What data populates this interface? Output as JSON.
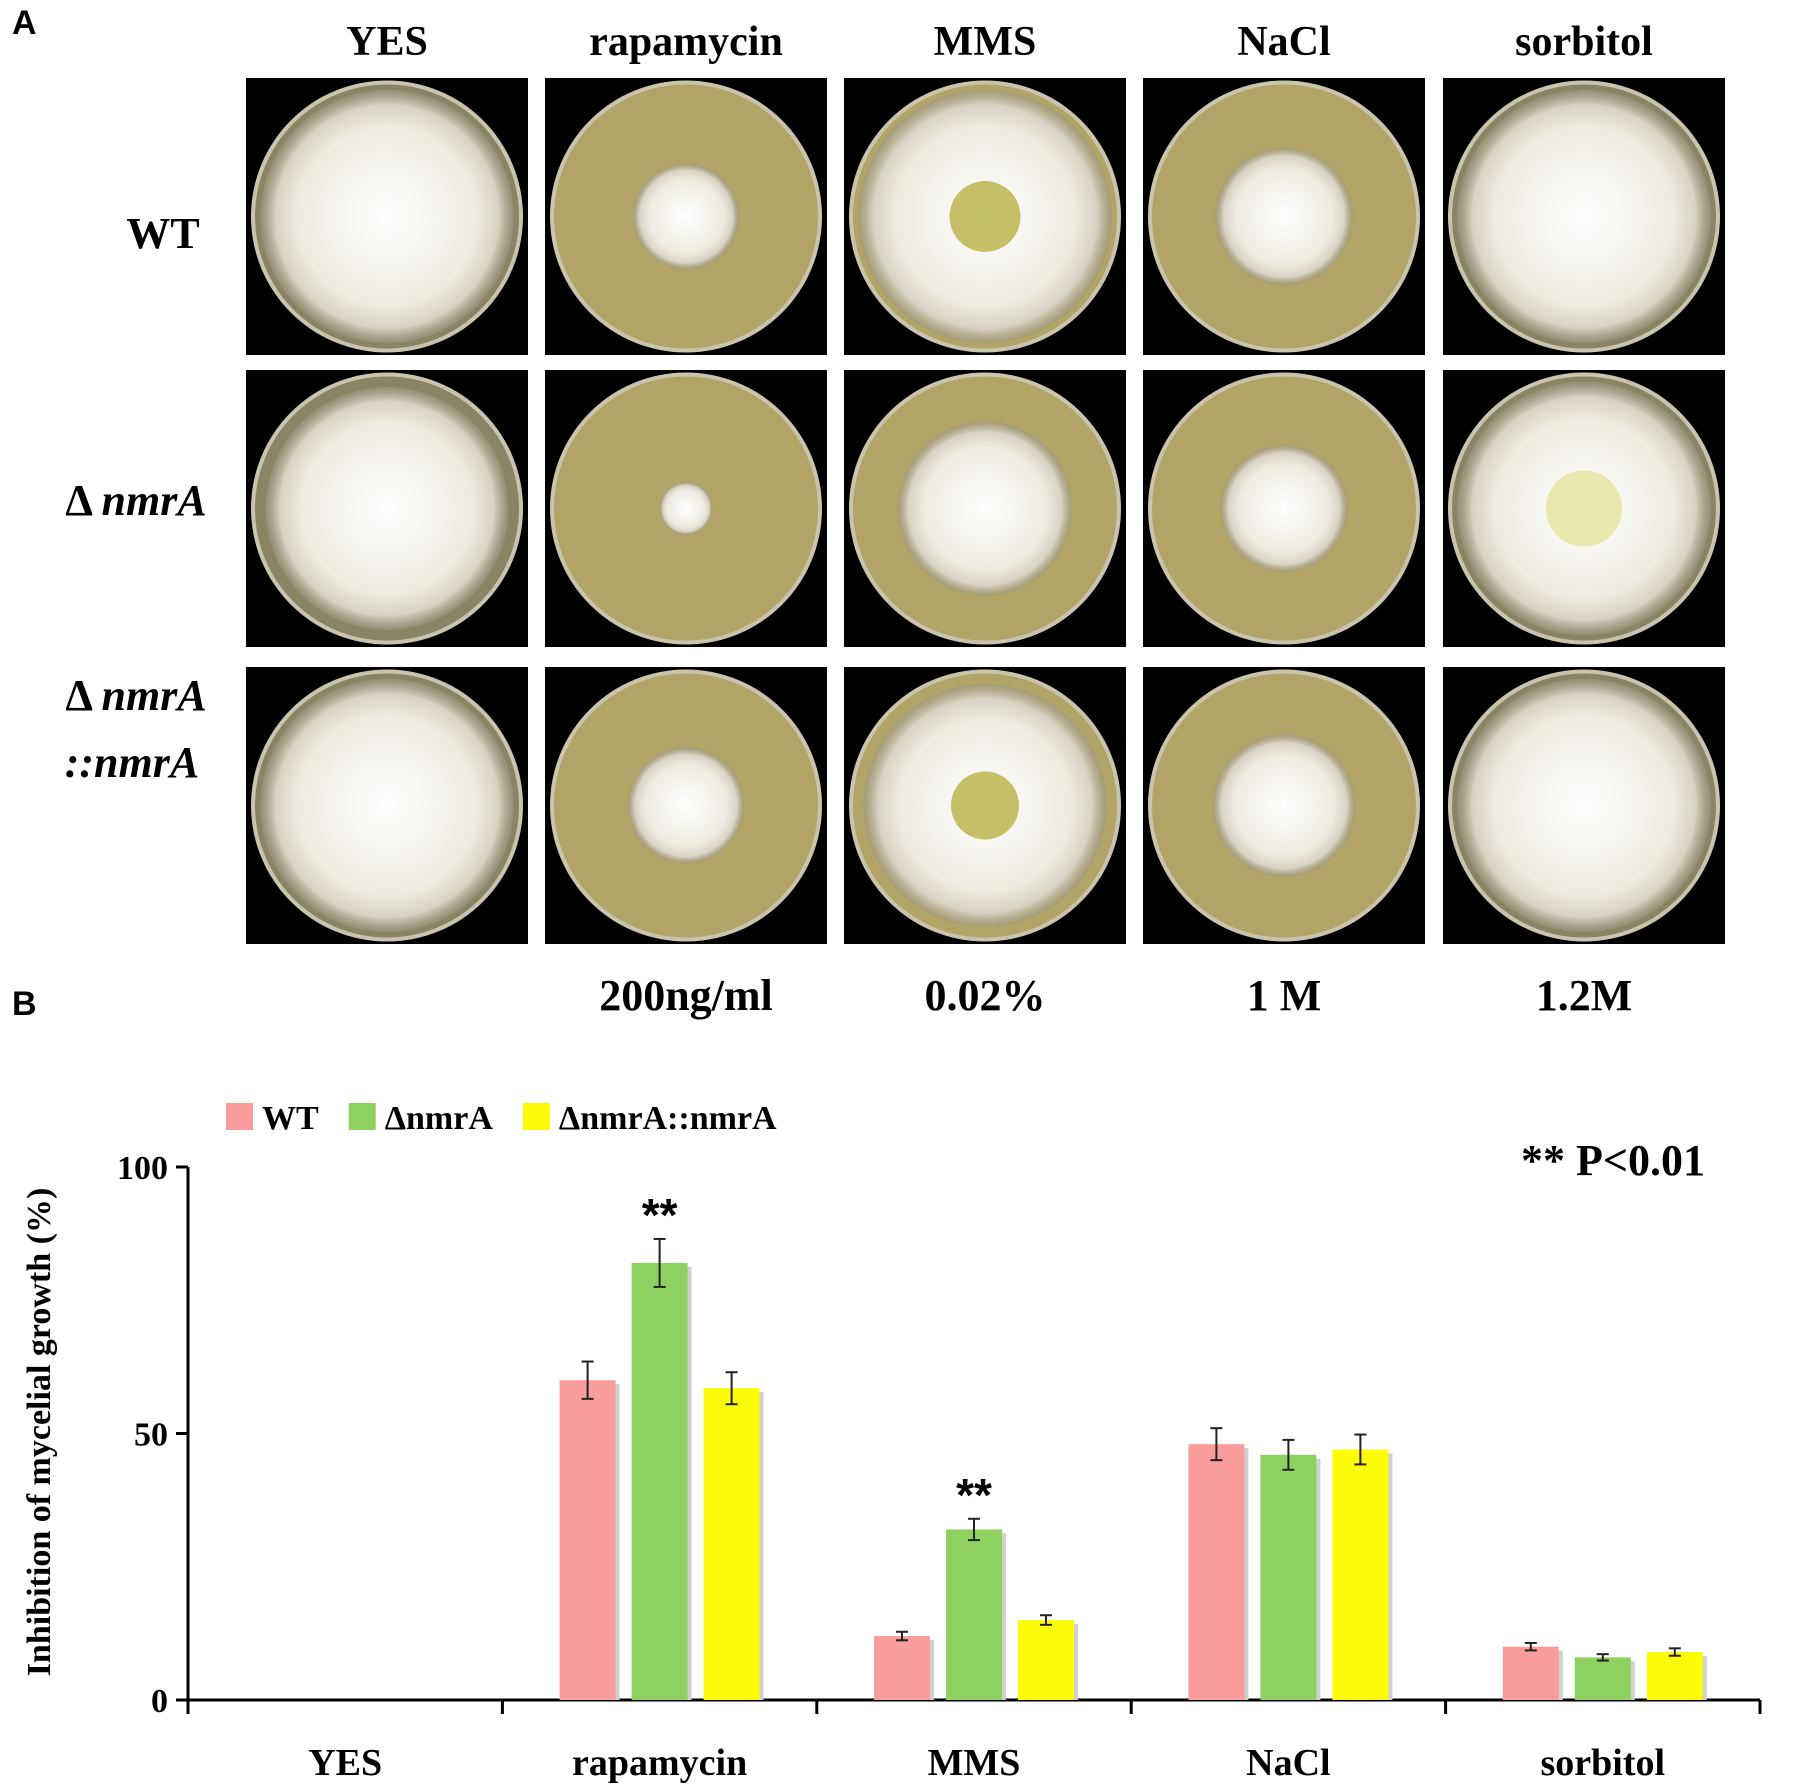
{
  "panel_a": {
    "letter": "A",
    "condition_labels": [
      "YES",
      "rapamycin",
      "MMS",
      "NaCl",
      "sorbitol"
    ],
    "concentration_labels": [
      "",
      "200ng/ml",
      "0.02%",
      "1 M",
      "1.2M"
    ],
    "strain_labels": [
      {
        "prefix": "Δ",
        "line1": "",
        "line2": "",
        "display": "WT"
      },
      {
        "prefix": "Δ",
        "line1": "nmrA",
        "line2": ""
      },
      {
        "prefix": "Δ",
        "line1": "nmrA",
        "line2": "::nmrA"
      }
    ],
    "strain_texts": {
      "wt": "WT",
      "delta": "Δ",
      "mutant": "nmrA",
      "complement_line1": "nmrA",
      "complement_line2": "::nmrA"
    },
    "colony_diameter_fraction": [
      [
        0.96,
        0.4,
        0.96,
        0.52,
        0.96
      ],
      [
        0.92,
        0.2,
        0.66,
        0.48,
        0.96
      ],
      [
        0.96,
        0.44,
        0.92,
        0.54,
        0.96
      ]
    ],
    "colors": {
      "background": "#000000",
      "yes_medium": "#8a8466",
      "drug_medium": "#b2a466",
      "mycelium": "#efece2",
      "mms_center": "#b9b045",
      "sorbitol_center": "#e4e29a"
    }
  },
  "panel_b": {
    "letter": "B"
  },
  "chart_data": {
    "type": "bar",
    "categories": [
      "YES",
      "rapamycin",
      "MMS",
      "NaCl",
      "sorbitol"
    ],
    "series": [
      {
        "name": "WT",
        "color": "#f99c9c",
        "values": [
          0,
          60,
          12,
          48,
          10
        ],
        "errors": [
          0,
          3.5,
          0.8,
          3,
          0.7
        ]
      },
      {
        "name": "ΔnmrA",
        "color": "#8fd160",
        "values": [
          0,
          82,
          32,
          46,
          8
        ],
        "errors": [
          0,
          4.5,
          2,
          2.8,
          0.6
        ]
      },
      {
        "name": "ΔnmrA::nmrA",
        "color": "#fbfb0a",
        "values": [
          0,
          58.5,
          15,
          47,
          9
        ],
        "errors": [
          0,
          3,
          0.9,
          2.8,
          0.7
        ]
      }
    ],
    "significance": [
      {
        "category": "rapamycin",
        "series": "ΔnmrA",
        "label": "**"
      },
      {
        "category": "MMS",
        "series": "ΔnmrA",
        "label": "**"
      }
    ],
    "annotation": "** P<0.01",
    "ylabel": "Inhibition of mycelial growth (%)",
    "xlabel": "",
    "ylim": [
      0,
      100
    ],
    "yticks": [
      0,
      50,
      100
    ],
    "grid": false,
    "legend_position": "top-left"
  }
}
